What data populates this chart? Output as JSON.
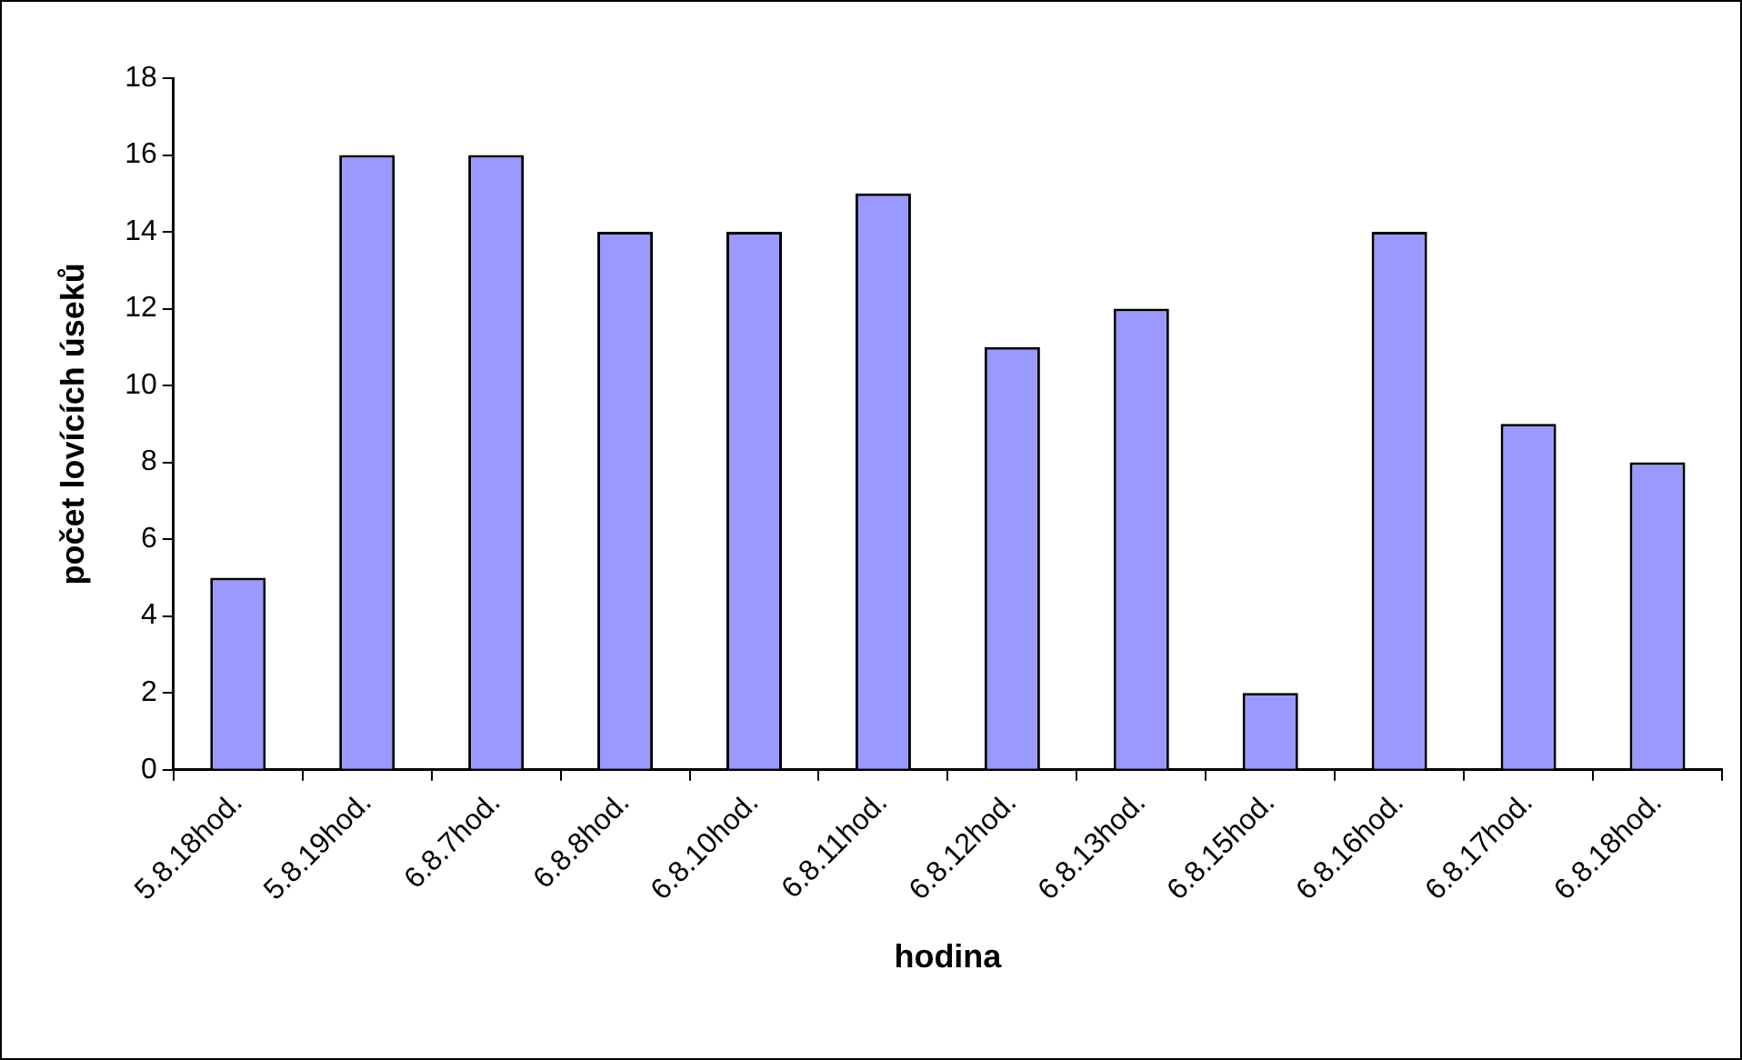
{
  "chart_data": {
    "type": "bar",
    "xlabel": "hodina",
    "ylabel": "počet lovících úseků",
    "categories": [
      "5.8.18hod.",
      "5.8.19hod.",
      "6.8.7hod.",
      "6.8.8hod.",
      "6.8.10hod.",
      "6.8.11hod.",
      "6.8.12hod.",
      "6.8.13hod.",
      "6.8.15hod.",
      "6.8.16hod.",
      "6.8.17hod.",
      "6.8.18hod."
    ],
    "values": [
      5,
      16,
      16,
      14,
      14,
      15,
      11,
      12,
      2,
      14,
      9,
      8
    ],
    "color": "#9999ff",
    "ylim": [
      0,
      18
    ],
    "yticks": [
      0,
      2,
      4,
      6,
      8,
      10,
      12,
      14,
      16,
      18
    ]
  }
}
